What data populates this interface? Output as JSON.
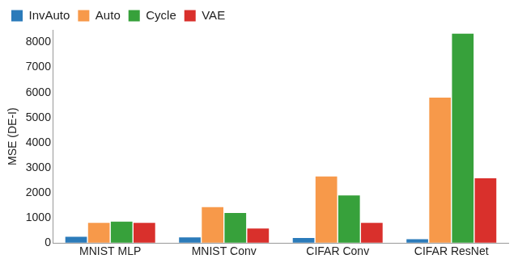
{
  "chart_data": {
    "type": "bar",
    "categories": [
      "MNIST MLP",
      "MNIST Conv",
      "CIFAR Conv",
      "CIFAR ResNet"
    ],
    "series": [
      {
        "name": "InvAuto",
        "color": "#2b7bba",
        "values": [
          250,
          220,
          200,
          150
        ]
      },
      {
        "name": "Auto",
        "color": "#f7994a",
        "values": [
          800,
          1430,
          2650,
          5800
        ]
      },
      {
        "name": "Cycle",
        "color": "#37a13b",
        "values": [
          850,
          1200,
          1900,
          8350
        ]
      },
      {
        "name": "VAE",
        "color": "#d9302c",
        "values": [
          800,
          580,
          800,
          2580
        ]
      }
    ],
    "y_label": "MSE (DE-I)",
    "ylim": [
      0,
      8500
    ],
    "yticks": [
      0,
      1000,
      2000,
      3000,
      4000,
      5000,
      6000,
      7000,
      8000
    ],
    "grid": false,
    "legend": "upper left"
  }
}
